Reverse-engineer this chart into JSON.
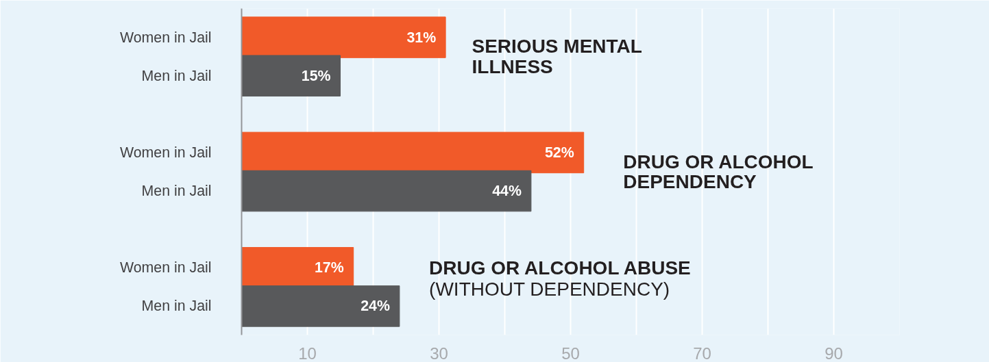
{
  "chart_data": {
    "type": "bar",
    "orientation": "horizontal",
    "categories": [
      "Women in Jail",
      "Men in Jail",
      null,
      "Women in Jail",
      "Men in Jail",
      null,
      "Women in Jail",
      "Men in Jail"
    ],
    "values": [
      31,
      15,
      null,
      52,
      44,
      null,
      17,
      24
    ],
    "colors": [
      "#f15a29",
      "#58595b",
      null,
      "#f15a29",
      "#58595b",
      null,
      "#f15a29",
      "#58595b"
    ],
    "value_labels": [
      "31%",
      "15%",
      null,
      "52%",
      "44%",
      null,
      "17%",
      "24%"
    ],
    "annotations": [
      "SERIOUS MENTAL ILLNESS",
      "DRUG OR ALCOHOL DEPENDENCY",
      "DRUG OR ALCOHOL ABUSE",
      "(WITHOUT DEPENDENCY)"
    ],
    "xlim": [
      0,
      100
    ],
    "xticks": [
      10,
      {
        "value": 20,
        "label": null
      },
      30,
      {
        "value": 40,
        "label": null
      },
      50,
      {
        "value": 60,
        "label": null
      },
      70,
      {
        "value": 80,
        "label": null
      },
      90,
      {
        "value": 100,
        "label": null
      }
    ],
    "grid": "x"
  }
}
